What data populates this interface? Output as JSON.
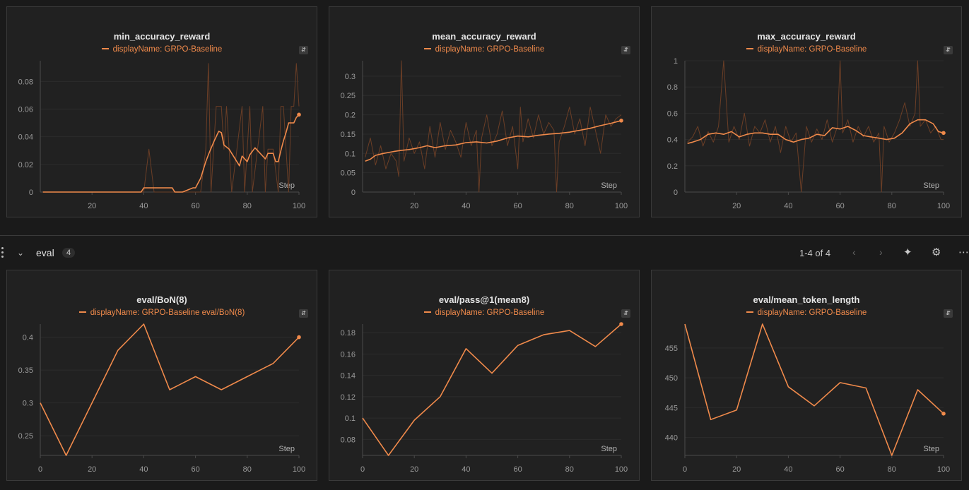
{
  "section": {
    "title": "eval",
    "count": "4",
    "pager": "1-4 of 4"
  },
  "colors": {
    "line": "#f08a4b",
    "raw": "#6b3e26",
    "grid": "#2c2c2c",
    "axis": "#4a4a4a"
  },
  "icons": [
    "kebab-icon",
    "chevron-down-icon",
    "chevron-left-icon",
    "chevron-right-icon",
    "pin-icon",
    "gear-icon",
    "more-icon",
    "expand-icon"
  ],
  "chart_data": [
    {
      "type": "line",
      "title": "min_accuracy_reward",
      "legend": "displayName: GRPO-Baseline",
      "xlabel": "Step",
      "xlim": [
        0,
        100
      ],
      "ylim": [
        0,
        0.095
      ],
      "xticks": [
        20,
        40,
        60,
        80,
        100
      ],
      "xtick_labels": [
        "20",
        "40",
        "60",
        "80",
        "100"
      ],
      "yticks": [
        0,
        0.02,
        0.04,
        0.06,
        0.08
      ],
      "ytick_labels": [
        "0",
        "0.02",
        "0.04",
        "0.06",
        "0.08"
      ],
      "series": [
        {
          "role": "raw",
          "x": [
            1,
            38,
            40,
            42,
            44,
            46,
            48,
            50,
            52,
            54,
            56,
            58,
            60,
            62,
            64,
            65,
            66,
            67,
            68,
            69,
            70,
            71,
            72,
            74,
            76,
            78,
            79,
            80,
            81,
            82,
            84,
            86,
            87,
            88,
            90,
            92,
            93,
            94,
            95,
            96,
            97,
            98,
            99,
            100
          ],
          "y": [
            0,
            0,
            0,
            0.031,
            0,
            0,
            0,
            0,
            0,
            0,
            0,
            0,
            0,
            0,
            0.031,
            0.093,
            0,
            0.031,
            0.062,
            0.062,
            0.062,
            0.031,
            0.062,
            0,
            0.031,
            0.062,
            0,
            0.031,
            0.062,
            0,
            0.031,
            0.062,
            0,
            0.031,
            0.031,
            0,
            0.062,
            0.062,
            0.031,
            0,
            0.062,
            0.062,
            0.093,
            0.062
          ]
        },
        {
          "role": "smoothed",
          "x": [
            1,
            39,
            40,
            51,
            52,
            55,
            59,
            60,
            62,
            64,
            65,
            67,
            69,
            70,
            71,
            73,
            75,
            77,
            78,
            80,
            81,
            83,
            85,
            87,
            88,
            90,
            91,
            92,
            93,
            94,
            95,
            96,
            97,
            98,
            99,
            100
          ],
          "y": [
            0,
            0,
            0.003,
            0.003,
            0,
            0,
            0.003,
            0.003,
            0.01,
            0.022,
            0.027,
            0.036,
            0.044,
            0.043,
            0.034,
            0.031,
            0.025,
            0.019,
            0.026,
            0.022,
            0.027,
            0.032,
            0.028,
            0.024,
            0.028,
            0.028,
            0.022,
            0.022,
            0.03,
            0.037,
            0.043,
            0.05,
            0.05,
            0.05,
            0.054,
            0.056
          ]
        }
      ]
    },
    {
      "type": "line",
      "title": "mean_accuracy_reward",
      "legend": "displayName: GRPO-Baseline",
      "xlabel": "Step",
      "xlim": [
        0,
        100
      ],
      "ylim": [
        0,
        0.34
      ],
      "xticks": [
        20,
        40,
        60,
        80,
        100
      ],
      "xtick_labels": [
        "20",
        "40",
        "60",
        "80",
        "100"
      ],
      "yticks": [
        0,
        0.05,
        0.1,
        0.15,
        0.2,
        0.25,
        0.3
      ],
      "ytick_labels": [
        "0",
        "0.05",
        "0.1",
        "0.15",
        "0.2",
        "0.25",
        "0.3"
      ],
      "series": [
        {
          "role": "raw",
          "x": [
            1,
            3,
            5,
            7,
            9,
            11,
            13,
            14,
            15,
            16,
            18,
            20,
            22,
            24,
            26,
            28,
            30,
            32,
            34,
            36,
            38,
            40,
            42,
            44,
            45,
            46,
            48,
            50,
            52,
            54,
            56,
            58,
            60,
            61,
            62,
            64,
            66,
            68,
            70,
            72,
            74,
            75,
            76,
            78,
            80,
            82,
            84,
            86,
            88,
            90,
            92,
            94,
            96,
            98,
            100
          ],
          "y": [
            0.09,
            0.14,
            0.07,
            0.12,
            0.06,
            0.1,
            0.08,
            0.04,
            0.34,
            0.08,
            0.14,
            0.1,
            0.13,
            0.06,
            0.17,
            0.09,
            0.18,
            0.11,
            0.16,
            0.13,
            0.09,
            0.18,
            0.12,
            0.16,
            0.0,
            0.14,
            0.2,
            0.12,
            0.15,
            0.21,
            0.12,
            0.17,
            0.06,
            0.22,
            0.13,
            0.19,
            0.14,
            0.2,
            0.15,
            0.18,
            0.16,
            0.0,
            0.13,
            0.17,
            0.22,
            0.15,
            0.19,
            0.12,
            0.22,
            0.16,
            0.1,
            0.2,
            0.17,
            0.19,
            0.2
          ]
        },
        {
          "role": "smoothed",
          "x": [
            1,
            3,
            5,
            8,
            12,
            15,
            18,
            22,
            25,
            28,
            32,
            36,
            40,
            44,
            48,
            52,
            56,
            60,
            64,
            68,
            72,
            76,
            80,
            84,
            88,
            92,
            96,
            100
          ],
          "y": [
            0.08,
            0.085,
            0.095,
            0.1,
            0.105,
            0.108,
            0.11,
            0.115,
            0.12,
            0.115,
            0.12,
            0.122,
            0.128,
            0.13,
            0.127,
            0.132,
            0.14,
            0.145,
            0.143,
            0.147,
            0.15,
            0.152,
            0.155,
            0.16,
            0.165,
            0.172,
            0.178,
            0.185
          ]
        }
      ]
    },
    {
      "type": "line",
      "title": "max_accuracy_reward",
      "legend": "displayName: GRPO-Baseline",
      "xlabel": "Step",
      "xlim": [
        0,
        100
      ],
      "ylim": [
        0,
        1.0
      ],
      "xticks": [
        20,
        40,
        60,
        80,
        100
      ],
      "xtick_labels": [
        "20",
        "40",
        "60",
        "80",
        "100"
      ],
      "yticks": [
        0,
        0.2,
        0.4,
        0.6,
        0.8,
        1
      ],
      "ytick_labels": [
        "0",
        "0.2",
        "0.4",
        "0.6",
        "0.8",
        "1"
      ],
      "series": [
        {
          "role": "raw",
          "x": [
            1,
            3,
            5,
            7,
            9,
            11,
            13,
            15,
            17,
            19,
            21,
            23,
            25,
            27,
            29,
            31,
            33,
            35,
            37,
            39,
            41,
            43,
            45,
            47,
            49,
            51,
            53,
            55,
            57,
            59,
            60,
            61,
            63,
            65,
            67,
            69,
            71,
            73,
            75,
            76,
            77,
            79,
            81,
            83,
            85,
            87,
            89,
            90,
            91,
            93,
            95,
            97,
            99,
            100
          ],
          "y": [
            0.38,
            0.42,
            0.5,
            0.35,
            0.46,
            0.38,
            0.5,
            1.0,
            0.38,
            0.5,
            0.4,
            0.6,
            0.35,
            0.5,
            0.45,
            0.55,
            0.38,
            0.5,
            0.3,
            0.5,
            0.38,
            0.45,
            0.0,
            0.5,
            0.38,
            0.48,
            0.4,
            0.55,
            0.38,
            0.5,
            1.0,
            0.45,
            0.55,
            0.38,
            0.5,
            0.42,
            0.5,
            0.38,
            0.45,
            0.0,
            0.5,
            0.38,
            0.45,
            0.55,
            0.68,
            0.5,
            0.6,
            1.0,
            0.5,
            0.55,
            0.45,
            0.5,
            0.4,
            0.4
          ]
        },
        {
          "role": "smoothed",
          "x": [
            1,
            3,
            6,
            9,
            12,
            15,
            18,
            21,
            24,
            27,
            30,
            33,
            36,
            39,
            42,
            45,
            48,
            51,
            54,
            57,
            60,
            63,
            66,
            69,
            72,
            75,
            78,
            81,
            84,
            87,
            90,
            93,
            96,
            98,
            100
          ],
          "y": [
            0.37,
            0.38,
            0.4,
            0.44,
            0.45,
            0.44,
            0.46,
            0.42,
            0.44,
            0.45,
            0.45,
            0.44,
            0.44,
            0.4,
            0.38,
            0.4,
            0.41,
            0.44,
            0.43,
            0.49,
            0.48,
            0.5,
            0.47,
            0.43,
            0.42,
            0.41,
            0.4,
            0.41,
            0.45,
            0.52,
            0.55,
            0.55,
            0.52,
            0.46,
            0.45
          ]
        }
      ]
    },
    {
      "type": "line",
      "title": "eval/BoN(8)",
      "legend": "displayName: GRPO-Baseline eval/BoN(8)",
      "xlabel": "Step",
      "xlim": [
        0,
        100
      ],
      "ylim": [
        0.22,
        0.42
      ],
      "xticks": [
        0,
        20,
        40,
        60,
        80,
        100
      ],
      "xtick_labels": [
        "0",
        "20",
        "40",
        "60",
        "80",
        "100"
      ],
      "yticks": [
        0.25,
        0.3,
        0.35,
        0.4
      ],
      "ytick_labels": [
        "0.25",
        "0.3",
        "0.35",
        "0.4"
      ],
      "series": [
        {
          "role": "line",
          "x": [
            0,
            10,
            20,
            30,
            40,
            50,
            60,
            70,
            80,
            90,
            100
          ],
          "y": [
            0.3,
            0.22,
            0.3,
            0.38,
            0.42,
            0.32,
            0.34,
            0.32,
            0.34,
            0.36,
            0.4
          ]
        }
      ]
    },
    {
      "type": "line",
      "title": "eval/pass@1(mean8)",
      "legend": "displayName: GRPO-Baseline",
      "xlabel": "Step",
      "xlim": [
        0,
        100
      ],
      "ylim": [
        0.065,
        0.188
      ],
      "xticks": [
        0,
        20,
        40,
        60,
        80,
        100
      ],
      "xtick_labels": [
        "0",
        "20",
        "40",
        "60",
        "80",
        "100"
      ],
      "yticks": [
        0.08,
        0.1,
        0.12,
        0.14,
        0.16,
        0.18
      ],
      "ytick_labels": [
        "0.08",
        "0.1",
        "0.12",
        "0.14",
        "0.16",
        "0.18"
      ],
      "series": [
        {
          "role": "line",
          "x": [
            0,
            10,
            20,
            30,
            40,
            50,
            60,
            70,
            80,
            90,
            100
          ],
          "y": [
            0.1,
            0.065,
            0.098,
            0.12,
            0.165,
            0.142,
            0.168,
            0.178,
            0.182,
            0.167,
            0.188
          ]
        }
      ]
    },
    {
      "type": "line",
      "title": "eval/mean_token_length",
      "legend": "displayName: GRPO-Baseline",
      "xlabel": "Step",
      "xlim": [
        0,
        100
      ],
      "ylim": [
        437,
        459
      ],
      "xticks": [
        0,
        20,
        40,
        60,
        80,
        100
      ],
      "xtick_labels": [
        "0",
        "20",
        "40",
        "60",
        "80",
        "100"
      ],
      "yticks": [
        440,
        445,
        450,
        455
      ],
      "ytick_labels": [
        "440",
        "445",
        "450",
        "455"
      ],
      "series": [
        {
          "role": "line",
          "x": [
            0,
            10,
            20,
            30,
            40,
            50,
            60,
            70,
            80,
            90,
            100
          ],
          "y": [
            459,
            443,
            444.6,
            459,
            448.5,
            445.3,
            449.2,
            448.3,
            437,
            448,
            444
          ]
        }
      ]
    }
  ]
}
